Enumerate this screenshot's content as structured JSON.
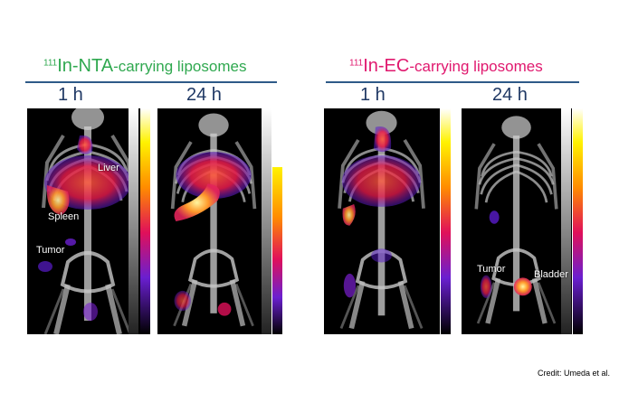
{
  "groups": [
    {
      "title": {
        "superscript": "111",
        "main": "In-NTA",
        "suffix": "-carrying liposomes"
      },
      "title_color": "#2fa84f",
      "times": [
        "1 h",
        "24 h"
      ]
    },
    {
      "title": {
        "superscript": "111",
        "main": "In-EC",
        "suffix": "-carrying liposomes"
      },
      "title_color": "#e0186e",
      "times": [
        "1 h",
        "24 h"
      ]
    }
  ],
  "labels": {
    "liver": "Liver",
    "spleen": "Spleen",
    "tumor_a": "Tumor",
    "tumor_b": "Tumor",
    "bladder": "Bladder"
  },
  "credit": "Credit:  Umeda et al.",
  "colors": {
    "rule": "#2e5a88",
    "time": "#1f3864"
  }
}
